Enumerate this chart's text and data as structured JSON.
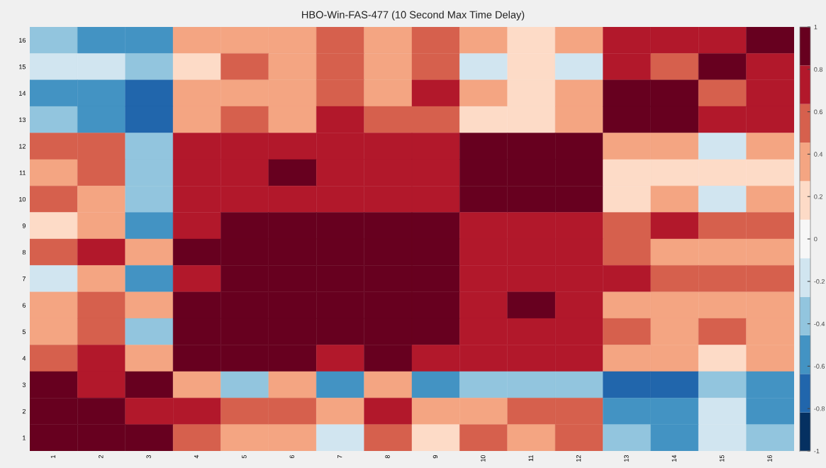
{
  "chart_data": {
    "type": "heatmap",
    "title": "HBO-Win-FAS-477 (10 Second Max Time Delay)",
    "categories": [
      "1",
      "2",
      "3",
      "4",
      "5",
      "6",
      "7",
      "8",
      "9",
      "10",
      "11",
      "12",
      "13",
      "14",
      "15",
      "16"
    ],
    "y_categories": [
      "16",
      "15",
      "14",
      "13",
      "12",
      "11",
      "10",
      "9",
      "8",
      "7",
      "6",
      "5",
      "4",
      "3",
      "2",
      "1"
    ],
    "cells": [
      [
        -0.36,
        -0.55,
        -0.55,
        0.36,
        0.36,
        0.36,
        0.55,
        0.36,
        0.55,
        0.36,
        0.18,
        0.36,
        0.73,
        0.73,
        0.73,
        0.91
      ],
      [
        -0.18,
        -0.18,
        -0.36,
        0.18,
        0.55,
        0.36,
        0.55,
        0.36,
        0.55,
        -0.18,
        0.18,
        -0.18,
        0.73,
        0.55,
        0.91,
        0.73
      ],
      [
        -0.55,
        -0.55,
        -0.73,
        0.36,
        0.36,
        0.36,
        0.55,
        0.36,
        0.73,
        0.36,
        0.18,
        0.36,
        0.91,
        0.91,
        0.55,
        0.73
      ],
      [
        -0.36,
        -0.55,
        -0.73,
        0.36,
        0.55,
        0.36,
        0.73,
        0.55,
        0.55,
        0.18,
        0.18,
        0.36,
        0.91,
        0.91,
        0.73,
        0.73
      ],
      [
        0.55,
        0.55,
        -0.36,
        0.73,
        0.73,
        0.73,
        0.73,
        0.73,
        0.73,
        0.91,
        0.91,
        0.91,
        0.36,
        0.36,
        -0.18,
        0.36
      ],
      [
        0.36,
        0.55,
        -0.36,
        0.73,
        0.73,
        0.91,
        0.73,
        0.73,
        0.73,
        0.91,
        0.91,
        0.91,
        0.18,
        0.18,
        0.18,
        0.18
      ],
      [
        0.55,
        0.36,
        -0.36,
        0.73,
        0.73,
        0.73,
        0.73,
        0.73,
        0.73,
        0.91,
        0.91,
        0.91,
        0.18,
        0.36,
        -0.18,
        0.36
      ],
      [
        0.18,
        0.36,
        -0.55,
        0.73,
        0.91,
        0.91,
        0.91,
        0.91,
        0.91,
        0.73,
        0.73,
        0.73,
        0.55,
        0.73,
        0.55,
        0.55
      ],
      [
        0.55,
        0.73,
        0.36,
        0.91,
        0.91,
        0.91,
        0.91,
        0.91,
        0.91,
        0.73,
        0.73,
        0.73,
        0.55,
        0.36,
        0.36,
        0.36
      ],
      [
        -0.18,
        0.36,
        -0.55,
        0.73,
        0.91,
        0.91,
        0.91,
        0.91,
        0.91,
        0.73,
        0.73,
        0.73,
        0.73,
        0.55,
        0.55,
        0.55
      ],
      [
        0.36,
        0.55,
        0.36,
        0.91,
        0.91,
        0.91,
        0.91,
        0.91,
        0.91,
        0.73,
        0.91,
        0.73,
        0.36,
        0.36,
        0.36,
        0.36
      ],
      [
        0.36,
        0.55,
        -0.36,
        0.91,
        0.91,
        0.91,
        0.91,
        0.91,
        0.91,
        0.73,
        0.73,
        0.73,
        0.55,
        0.36,
        0.55,
        0.36
      ],
      [
        0.55,
        0.73,
        0.36,
        0.91,
        0.91,
        0.91,
        0.73,
        0.91,
        0.73,
        0.73,
        0.73,
        0.73,
        0.36,
        0.36,
        0.18,
        0.36
      ],
      [
        0.91,
        0.73,
        0.91,
        0.36,
        -0.36,
        0.36,
        -0.55,
        0.36,
        -0.55,
        -0.36,
        -0.36,
        -0.36,
        -0.73,
        -0.73,
        -0.36,
        -0.55
      ],
      [
        0.91,
        0.91,
        0.73,
        0.73,
        0.55,
        0.55,
        0.36,
        0.73,
        0.36,
        0.36,
        0.55,
        0.55,
        -0.55,
        -0.55,
        -0.18,
        -0.55
      ],
      [
        0.91,
        0.91,
        0.91,
        0.55,
        0.36,
        0.36,
        -0.18,
        0.55,
        0.18,
        0.55,
        0.36,
        0.55,
        -0.36,
        -0.55,
        -0.18,
        -0.36
      ]
    ],
    "clim": [
      -1,
      1
    ],
    "cticks": [
      -1,
      -0.8,
      -0.6,
      -0.4,
      -0.2,
      0,
      0.2,
      0.4,
      0.6,
      0.8,
      1
    ]
  }
}
